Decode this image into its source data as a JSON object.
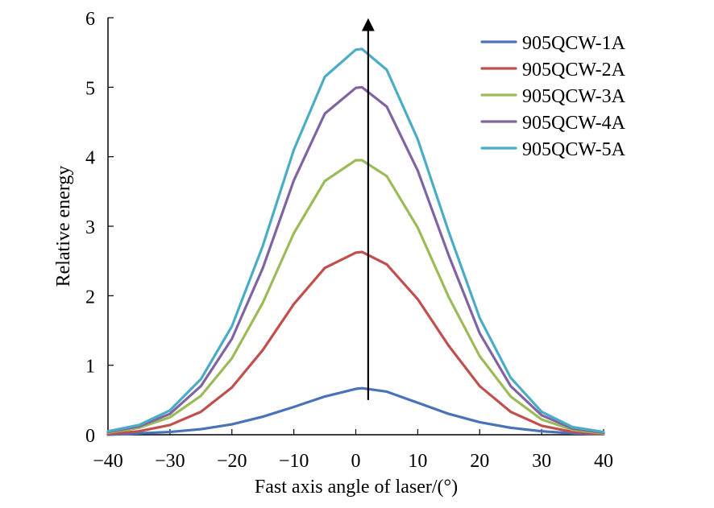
{
  "chart_data": {
    "type": "line",
    "title": "",
    "xlabel": "Fast axis angle of laser/(°)",
    "ylabel": "Relative energy",
    "xlim": [
      -40,
      40
    ],
    "ylim": [
      0,
      6
    ],
    "x_ticks": [
      -40,
      -30,
      -20,
      -10,
      0,
      10,
      20,
      30,
      40
    ],
    "y_ticks": [
      0,
      1,
      2,
      3,
      4,
      5,
      6
    ],
    "x_tick_labels": [
      "−40",
      "−30",
      "−20",
      "−10",
      "0",
      "10",
      "20",
      "30",
      "40"
    ],
    "y_tick_labels": [
      "0",
      "1",
      "2",
      "3",
      "4",
      "5",
      "6"
    ],
    "grid": false,
    "legend_position": "top-right",
    "x": [
      -40,
      -35,
      -30,
      -25,
      -20,
      -15,
      -10,
      -5,
      0,
      1,
      5,
      10,
      15,
      20,
      25,
      30,
      35,
      40
    ],
    "series": [
      {
        "name": "905QCW-1A",
        "color": "#4a72b8",
        "values": [
          0.0,
          0.02,
          0.04,
          0.08,
          0.15,
          0.26,
          0.4,
          0.55,
          0.66,
          0.67,
          0.62,
          0.46,
          0.3,
          0.18,
          0.1,
          0.05,
          0.02,
          0.01
        ]
      },
      {
        "name": "905QCW-2A",
        "color": "#c0504d",
        "values": [
          0.01,
          0.05,
          0.14,
          0.33,
          0.68,
          1.22,
          1.88,
          2.4,
          2.62,
          2.63,
          2.45,
          1.95,
          1.28,
          0.7,
          0.33,
          0.13,
          0.04,
          0.01
        ]
      },
      {
        "name": "905QCW-3A",
        "color": "#9bbb59",
        "values": [
          0.03,
          0.1,
          0.25,
          0.56,
          1.1,
          1.9,
          2.9,
          3.65,
          3.95,
          3.95,
          3.72,
          2.98,
          1.98,
          1.13,
          0.55,
          0.22,
          0.07,
          0.02
        ]
      },
      {
        "name": "905QCW-4A",
        "color": "#8064a2",
        "values": [
          0.04,
          0.12,
          0.3,
          0.7,
          1.38,
          2.4,
          3.66,
          4.62,
          4.99,
          5.0,
          4.72,
          3.8,
          2.58,
          1.46,
          0.7,
          0.28,
          0.09,
          0.03
        ]
      },
      {
        "name": "905QCW-5A",
        "color": "#4bacc6",
        "values": [
          0.05,
          0.14,
          0.35,
          0.8,
          1.56,
          2.72,
          4.1,
          5.15,
          5.54,
          5.55,
          5.25,
          4.25,
          2.92,
          1.68,
          0.82,
          0.33,
          0.11,
          0.04
        ]
      }
    ],
    "annotations": [
      {
        "type": "arrow",
        "x": 2,
        "y_start": 0.5,
        "y_end": 5.9
      }
    ]
  }
}
